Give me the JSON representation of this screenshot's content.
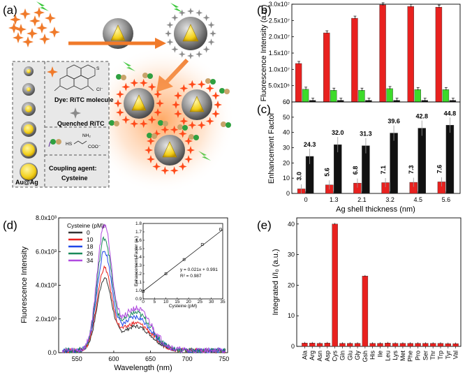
{
  "panels": {
    "a": "(a)",
    "b": "(b)",
    "c": "(c)",
    "d": "(d)",
    "e": "(e)"
  },
  "colors": {
    "red": "#e8211f",
    "green": "#3ddb2a",
    "black": "#111111",
    "orange": "#f07a2a",
    "gold": "#f2cf1a",
    "grey": "#8a8a8a"
  },
  "schematic": {
    "dye_label": "Dye: RiTC molecule",
    "quenched_label": "Quenched RiTC",
    "coupling_label": "Coupling agent:",
    "coupling_name": "Cysteine",
    "particle_label": "Au@Ag",
    "chem_cl": "Cl⁻",
    "chem_s": "S",
    "chem_hs": "HS",
    "chem_nh2": "NH₂",
    "chem_coo": "COO⁻"
  },
  "chart_data": [
    {
      "id": "b",
      "type": "bar",
      "title": "",
      "xlabel": "",
      "ylabel": "Fluorescence Intensity (a.u.)",
      "ylim": [
        0,
        30000000
      ],
      "yticks": [
        "0",
        "5.0x10⁶",
        "1.0x10⁷",
        "1.5x10⁷",
        "2.0x10⁷",
        "2.5x10⁷",
        "3.0x10⁷"
      ],
      "categories": [
        "0",
        "1.3",
        "2.1",
        "3.2",
        "4.5",
        "5.6"
      ],
      "series": [
        {
          "name": "red",
          "color": "#e8211f",
          "values": [
            11800000,
            21200000,
            25700000,
            29800000,
            29300000,
            29100000
          ]
        },
        {
          "name": "green",
          "color": "#3ddb2a",
          "values": [
            3900000,
            3600000,
            3600000,
            4100000,
            3800000,
            3800000
          ]
        },
        {
          "name": "black",
          "color": "#111111",
          "values": [
            500000,
            500000,
            500000,
            500000,
            500000,
            500000
          ]
        }
      ]
    },
    {
      "id": "c",
      "type": "bar",
      "title": "",
      "xlabel": "Ag shell thickness (nm)",
      "ylabel": "Enhancement Factor",
      "ylim": [
        0,
        60
      ],
      "yticks": [
        "0",
        "10",
        "20",
        "30",
        "40",
        "50",
        "60"
      ],
      "categories": [
        "0",
        "1.3",
        "2.1",
        "3.2",
        "4.5",
        "5.6"
      ],
      "series": [
        {
          "name": "red",
          "color": "#e8211f",
          "values": [
            3.0,
            5.6,
            6.8,
            7.1,
            7.3,
            7.6
          ],
          "labels": [
            "3.0",
            "5.6",
            "6.8",
            "7.1",
            "7.3",
            "7.6"
          ]
        },
        {
          "name": "black",
          "color": "#111111",
          "values": [
            24.3,
            32.0,
            31.3,
            39.6,
            42.8,
            44.8
          ],
          "labels": [
            "24.3",
            "32.0",
            "31.3",
            "39.6",
            "42.8",
            "44.8"
          ]
        }
      ]
    },
    {
      "id": "d",
      "type": "line",
      "title": "",
      "xlabel": "Wavelength (nm)",
      "ylabel": "Fluorescence Intensity",
      "xlim": [
        525,
        755
      ],
      "ylim": [
        0,
        8000
      ],
      "xticks": [
        "550",
        "600",
        "650",
        "700",
        "750"
      ],
      "yticks": [
        "0.0",
        "2.0x10³",
        "4.0x10³",
        "6.0x10³",
        "8.0x10³"
      ],
      "legend_title": "Cysteine (pM):",
      "series": [
        {
          "name": "0",
          "color": "#333333",
          "peak": 4300
        },
        {
          "name": "10",
          "color": "#e8211f",
          "peak": 4900
        },
        {
          "name": "18",
          "color": "#1f47e8",
          "peak": 5900
        },
        {
          "name": "26",
          "color": "#1a8a5a",
          "peak": 6700
        },
        {
          "name": "34",
          "color": "#b04ae0",
          "peak": 7500
        }
      ],
      "inset": {
        "xlabel": "Cysteine (pM)",
        "ylabel": "Enhancement Factor (a.)",
        "xlim": [
          0,
          35
        ],
        "ylim": [
          0.9,
          1.8
        ],
        "xticks": [
          "0",
          "5",
          "10",
          "15",
          "20",
          "25",
          "30",
          "35"
        ],
        "yticks": [
          "0.9",
          "1.0",
          "1.1",
          "1.2",
          "1.3",
          "1.4",
          "1.5",
          "1.6",
          "1.7",
          "1.8"
        ],
        "equation": "y = 0.021x + 0.991",
        "r2": "R² = 0.987",
        "points": [
          [
            0,
            0.99
          ],
          [
            10,
            1.2
          ],
          [
            18,
            1.37
          ],
          [
            26,
            1.55
          ],
          [
            34,
            1.73
          ]
        ]
      }
    },
    {
      "id": "e",
      "type": "bar",
      "title": "",
      "xlabel": "",
      "ylabel": "Integrated I/I₀ (a.u.)",
      "ylim": [
        0,
        42
      ],
      "yticks": [
        "0",
        "10",
        "20",
        "30",
        "40"
      ],
      "categories": [
        "Ala",
        "Arg",
        "Asn",
        "Asp",
        "Cys",
        "Gln",
        "Glu",
        "Gly",
        "Gsh",
        "His",
        "Ile",
        "Leu",
        "Lys",
        "Met",
        "Phe",
        "Pro",
        "Ser",
        "Thr",
        "Trp",
        "Tyr",
        "Val"
      ],
      "values": [
        1.1,
        1.1,
        1.0,
        1.1,
        40.0,
        1.0,
        1.0,
        1.0,
        23.0,
        1.0,
        1.0,
        1.1,
        1.0,
        1.0,
        1.0,
        1.0,
        1.0,
        1.0,
        1.0,
        0.9,
        0.9
      ],
      "color": "#e8211f"
    }
  ]
}
